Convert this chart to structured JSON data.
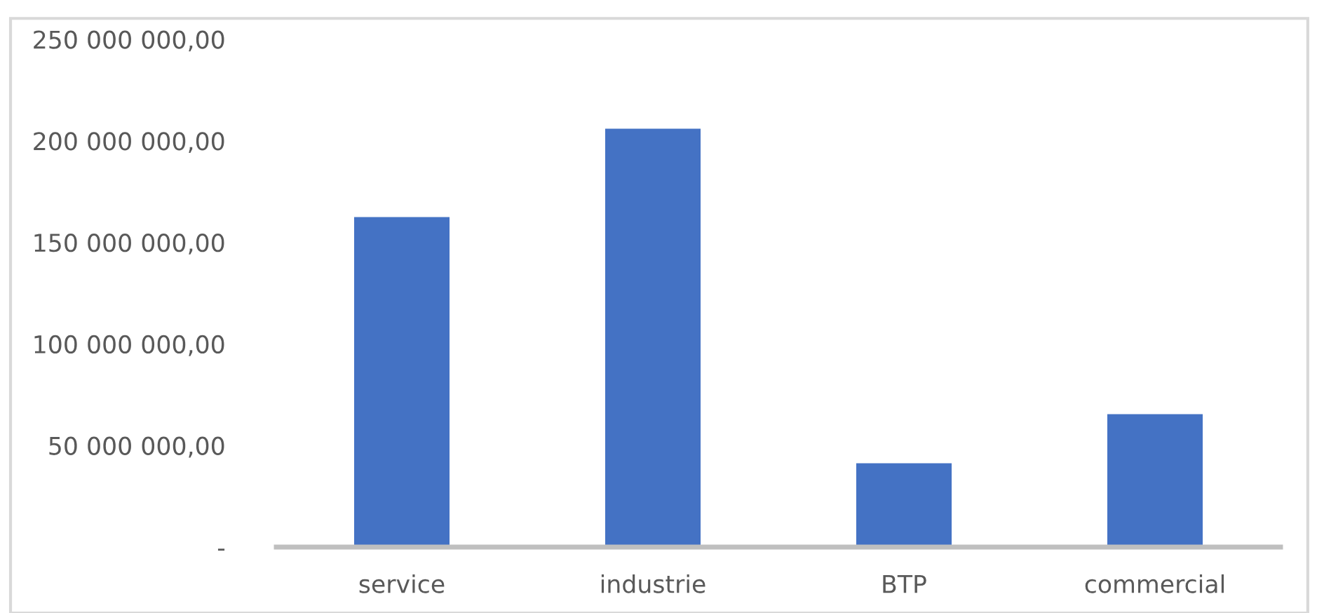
{
  "chart_data": {
    "type": "bar",
    "categories": [
      "service",
      "industrie",
      "BTP",
      "commercial"
    ],
    "values": [
      162500000,
      206000000,
      41300000,
      65400000
    ],
    "color": "#4472c4",
    "ylim": [
      0,
      250000000
    ],
    "yticks": [
      {
        "value": 0,
        "label": "-"
      },
      {
        "value": 50000000,
        "label": "50 000 000,00"
      },
      {
        "value": 100000000,
        "label": "100 000 000,00"
      },
      {
        "value": 150000000,
        "label": "150 000 000,00"
      },
      {
        "value": 200000000,
        "label": "200 000 000,00"
      },
      {
        "value": 250000000,
        "label": "250 000 000,00"
      }
    ],
    "grid": false
  }
}
